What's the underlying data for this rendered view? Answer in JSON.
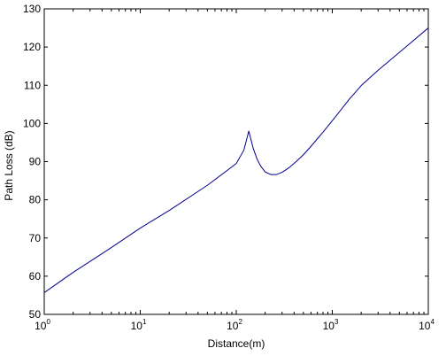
{
  "chart_data": {
    "type": "line",
    "title": "",
    "xlabel": "Distance(m)",
    "ylabel": "Path Loss (dB)",
    "xscale": "log",
    "xlim": [
      1,
      10000
    ],
    "ylim": [
      50,
      130
    ],
    "grid": false,
    "x_ticks": [
      {
        "value": 1,
        "base": "10",
        "exp": "0"
      },
      {
        "value": 10,
        "base": "10",
        "exp": "1"
      },
      {
        "value": 100,
        "base": "10",
        "exp": "2"
      },
      {
        "value": 1000,
        "base": "10",
        "exp": "3"
      },
      {
        "value": 10000,
        "base": "10",
        "exp": "4"
      }
    ],
    "y_ticks": [
      {
        "value": 50,
        "label": "50"
      },
      {
        "value": 60,
        "label": "60"
      },
      {
        "value": 70,
        "label": "70"
      },
      {
        "value": 80,
        "label": "80"
      },
      {
        "value": 90,
        "label": "90"
      },
      {
        "value": 100,
        "label": "100"
      },
      {
        "value": 110,
        "label": "110"
      },
      {
        "value": 120,
        "label": "120"
      },
      {
        "value": 130,
        "label": "130"
      }
    ],
    "series": [
      {
        "color": "#00008b",
        "x": [
          1,
          2,
          5,
          10,
          20,
          50,
          100,
          120,
          135,
          150,
          165,
          180,
          200,
          230,
          260,
          300,
          350,
          420,
          500,
          600,
          700,
          800,
          1000,
          1500,
          2000,
          3000,
          5000,
          7000,
          10000
        ],
        "y": [
          55.7,
          61.0,
          67.5,
          72.6,
          77.2,
          83.8,
          89.5,
          93.0,
          98.0,
          93.5,
          90.6,
          88.8,
          87.3,
          86.6,
          86.6,
          87.2,
          88.3,
          90.0,
          91.8,
          94.0,
          96.0,
          97.7,
          100.7,
          106.3,
          109.9,
          113.9,
          118.6,
          121.7,
          125.0
        ]
      }
    ]
  }
}
